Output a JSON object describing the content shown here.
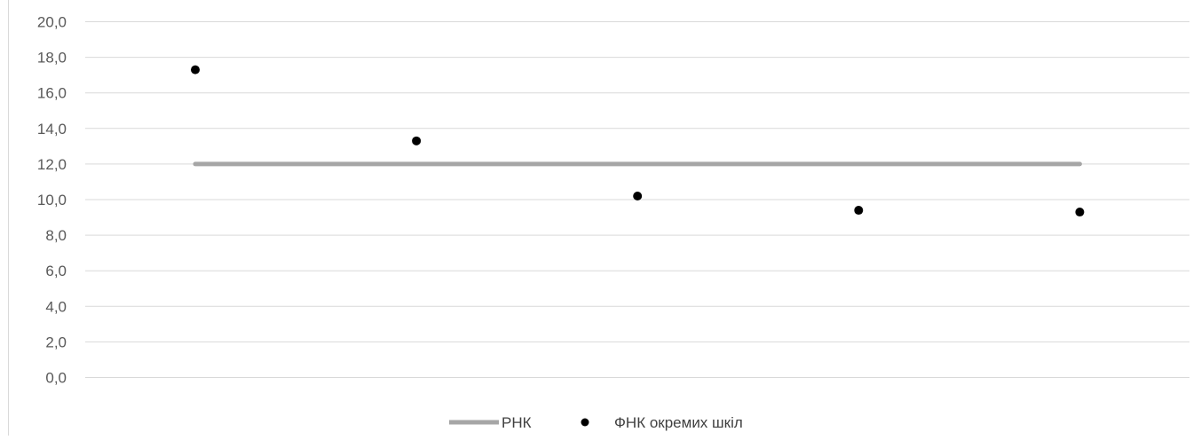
{
  "chart_data": {
    "type": "scatter",
    "title": "",
    "xlabel": "",
    "ylabel": "",
    "ylim": [
      0,
      20
    ],
    "y_ticks": [
      "0,0",
      "2,0",
      "4,0",
      "6,0",
      "8,0",
      "10,0",
      "12,0",
      "14,0",
      "16,0",
      "18,0",
      "20,0"
    ],
    "grid": true,
    "legend_position": "bottom",
    "series": [
      {
        "name": "РНК",
        "kind": "line",
        "color": "#a6a6a6",
        "x": [
          1,
          5
        ],
        "values": [
          12.0,
          12.0
        ]
      },
      {
        "name": "ФНК окремих шкіл",
        "kind": "markers",
        "color": "#000000",
        "x": [
          1,
          2,
          3,
          4,
          5
        ],
        "values": [
          17.3,
          13.3,
          10.2,
          9.4,
          9.3
        ]
      }
    ]
  }
}
